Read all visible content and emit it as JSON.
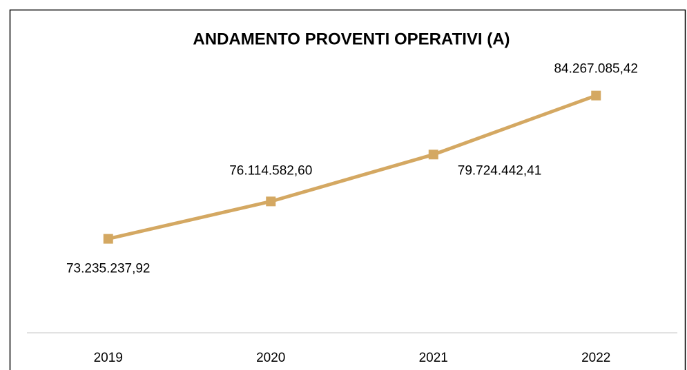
{
  "chart_data": {
    "type": "line",
    "title": "ANDAMENTO PROVENTI OPERATIVI (A)",
    "categories": [
      "2019",
      "2020",
      "2021",
      "2022"
    ],
    "series": [
      {
        "color": "#d4a862",
        "values": [
          73235237.92,
          76114582.6,
          79724442.41,
          84267085.42
        ],
        "value_labels": [
          "73.235.237,92",
          "76.114.582,60",
          "79.724.442,41",
          "84.267.085,42"
        ]
      }
    ],
    "ylim": [
      66000000,
      86000000
    ]
  }
}
